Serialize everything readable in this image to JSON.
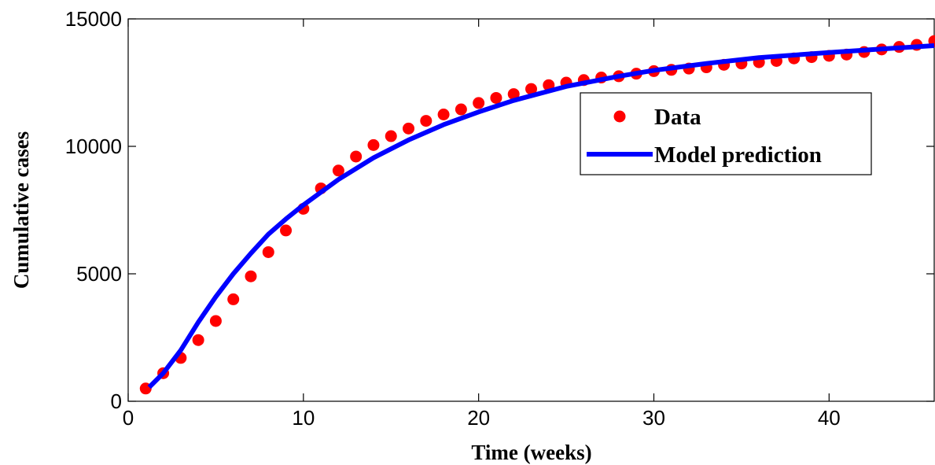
{
  "chart_data": {
    "type": "line",
    "xlabel": "Time (weeks)",
    "ylabel": "Cumulative cases",
    "xlim": [
      0,
      46
    ],
    "ylim": [
      0,
      15000
    ],
    "xticks": [
      0,
      10,
      20,
      30,
      40
    ],
    "yticks": [
      0,
      5000,
      10000,
      15000
    ],
    "legend": "upper right",
    "series": [
      {
        "name": "Data",
        "color": "#ff0000",
        "style": "markers",
        "x": [
          1,
          2,
          3,
          4,
          5,
          6,
          7,
          8,
          9,
          10,
          11,
          12,
          13,
          14,
          15,
          16,
          17,
          18,
          19,
          20,
          21,
          22,
          23,
          24,
          25,
          26,
          27,
          28,
          29,
          30,
          31,
          32,
          33,
          34,
          35,
          36,
          37,
          38,
          39,
          40,
          41,
          42,
          43,
          44,
          45,
          46
        ],
        "values": [
          500,
          1100,
          1700,
          2400,
          3150,
          4000,
          4900,
          5850,
          6700,
          7550,
          8350,
          9050,
          9600,
          10050,
          10400,
          10700,
          11000,
          11250,
          11450,
          11700,
          11900,
          12050,
          12250,
          12400,
          12500,
          12600,
          12700,
          12750,
          12850,
          12950,
          13000,
          13050,
          13100,
          13200,
          13250,
          13300,
          13350,
          13450,
          13500,
          13550,
          13600,
          13700,
          13800,
          13900,
          13980,
          14130
        ]
      },
      {
        "name": "Model prediction",
        "color": "#0000ff",
        "style": "line",
        "x": [
          1.2,
          2,
          3,
          4,
          5,
          6,
          7,
          8,
          9,
          10,
          12,
          14,
          16,
          18,
          20,
          22,
          25,
          28,
          30,
          33,
          36,
          40,
          43,
          46
        ],
        "values": [
          550,
          1100,
          2000,
          3100,
          4100,
          5000,
          5800,
          6550,
          7150,
          7700,
          8700,
          9550,
          10250,
          10850,
          11350,
          11800,
          12350,
          12750,
          12980,
          13250,
          13480,
          13680,
          13820,
          13950
        ]
      }
    ]
  }
}
